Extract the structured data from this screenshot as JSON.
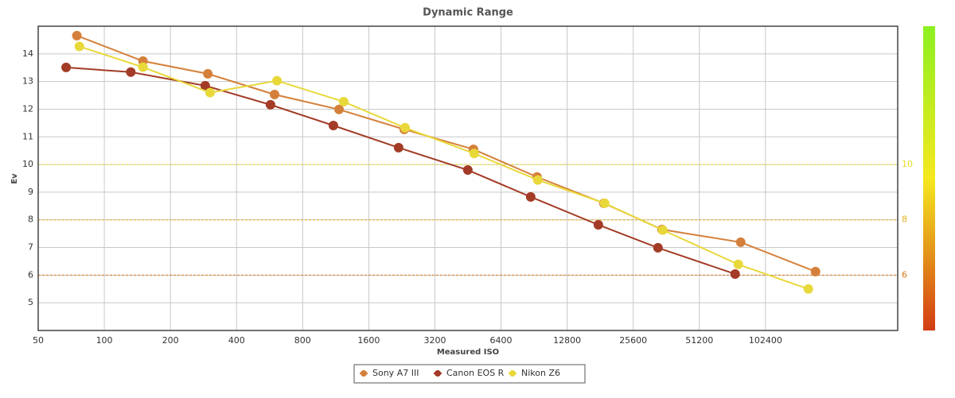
{
  "chart_data": {
    "type": "line",
    "title": "Dynamic Range",
    "x_label": "Measured ISO",
    "y_label": "Ev",
    "x_scale": "log",
    "xlim": [
      50,
      409600
    ],
    "xticks": [
      50,
      100,
      200,
      400,
      800,
      1600,
      3200,
      6400,
      12800,
      25600,
      51200,
      102400
    ],
    "ylim": [
      4,
      15
    ],
    "yticks": [
      5,
      6,
      7,
      8,
      9,
      10,
      11,
      12,
      13,
      14
    ],
    "y2lim": [
      4,
      15
    ],
    "y2ticks": [
      6,
      8,
      10
    ],
    "grid": true,
    "legend": "bottom",
    "series": [
      {
        "name": "Sony A7 III",
        "color": "#d5803a",
        "x": [
          75,
          150,
          296,
          596,
          1171,
          2320,
          4793,
          9339,
          18818,
          34600,
          79000,
          173000
        ],
        "values": [
          14.66,
          13.74,
          13.28,
          12.53,
          11.99,
          11.27,
          10.55,
          9.55,
          8.6,
          7.65,
          7.19,
          6.13
        ]
      },
      {
        "name": "Canon EOS R",
        "color": "#a33b26",
        "x": [
          67,
          132,
          288,
          571,
          1104,
          2187,
          4519,
          8737,
          17755,
          33180,
          74500
        ],
        "values": [
          13.51,
          13.34,
          12.85,
          12.16,
          11.41,
          10.61,
          9.8,
          8.83,
          7.82,
          6.99,
          6.04
        ]
      },
      {
        "name": "Nikon Z6",
        "color": "#e8d83a",
        "x": [
          77,
          150,
          303,
          611,
          1230,
          2340,
          4830,
          9415,
          18975,
          34890,
          77000,
          160500
        ],
        "values": [
          14.27,
          13.52,
          12.6,
          13.03,
          12.27,
          11.33,
          10.4,
          9.44,
          8.6,
          7.63,
          6.39,
          5.5
        ]
      }
    ]
  }
}
